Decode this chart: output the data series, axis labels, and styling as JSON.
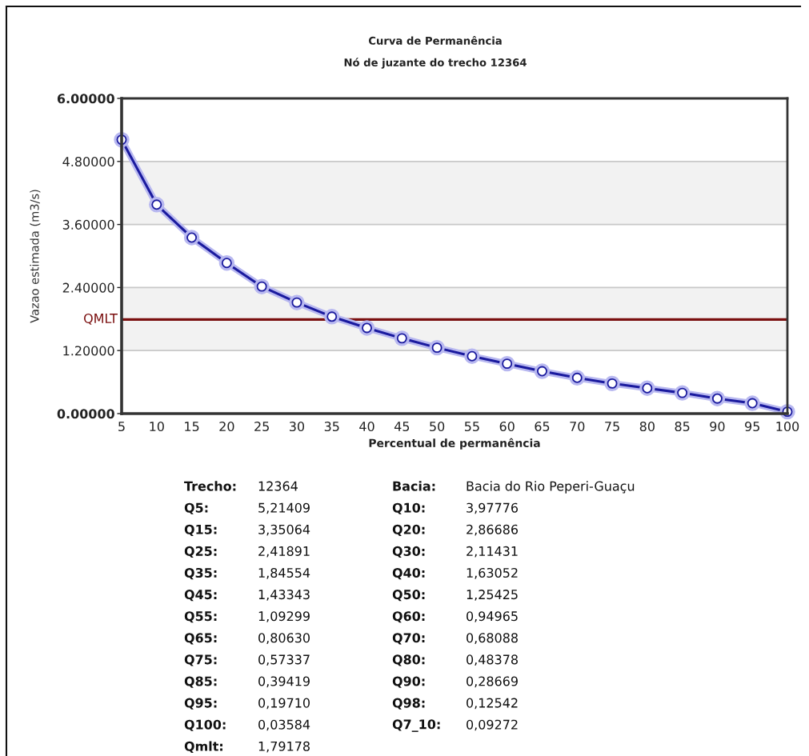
{
  "chart_data": {
    "type": "line",
    "title": "Curva de Permanência",
    "subtitle": "Nó de juzante do trecho 12364",
    "xlabel": "Percentual de permanência",
    "ylabel": "Vazao estimada (m3/s)",
    "x": [
      5,
      10,
      15,
      20,
      25,
      30,
      35,
      40,
      45,
      50,
      55,
      60,
      65,
      70,
      75,
      80,
      85,
      90,
      95,
      100
    ],
    "series": [
      {
        "color": "#1a1a9e",
        "values": [
          5.21409,
          3.97776,
          3.35064,
          2.86686,
          2.41891,
          2.11431,
          1.84554,
          1.63052,
          1.43343,
          1.25425,
          1.09299,
          0.94965,
          0.8063,
          0.68088,
          0.57337,
          0.48378,
          0.39419,
          0.28669,
          0.1971,
          0.03584
        ]
      }
    ],
    "marker": "circle",
    "line_style": "solid",
    "xlim": [
      5,
      100
    ],
    "xticks": [
      5,
      10,
      15,
      20,
      25,
      30,
      35,
      40,
      45,
      50,
      55,
      60,
      65,
      70,
      75,
      80,
      85,
      90,
      95,
      100
    ],
    "ylim": [
      0,
      6
    ],
    "yticks": [
      {
        "value": 0,
        "label": "0.00000"
      },
      {
        "value": 1.2,
        "label": "1.20000"
      },
      {
        "value": 2.4,
        "label": "2.40000"
      },
      {
        "value": 3.6,
        "label": "3.60000"
      },
      {
        "value": 4.8,
        "label": "4.80000"
      },
      {
        "value": 6,
        "label": "6.00000"
      }
    ],
    "grid": "y",
    "bands": [
      {
        "axis": "y",
        "from": 1.2,
        "to": 2.4,
        "color": "#f2f2f2"
      },
      {
        "axis": "y",
        "from": 3.6,
        "to": 4.8,
        "color": "#f2f2f2"
      }
    ],
    "ref_lines": [
      {
        "axis": "y",
        "value": 1.79178,
        "label": "QMLT",
        "color": "#7b1010"
      }
    ],
    "annotations": [
      "Trecho:",
      "12364",
      "Bacia:",
      "Bacia do Rio Peperi-Guaçu",
      "Q5:",
      "5,21409",
      "Q10:",
      "3,97776",
      "Q15:",
      "3,35064",
      "Q20:",
      "2,86686",
      "Q25:",
      "2,41891",
      "Q30:",
      "2,11431",
      "Q35:",
      "1,84554",
      "Q40:",
      "1,63052",
      "Q45:",
      "1,43343",
      "Q50:",
      "1,25425",
      "Q55:",
      "1,09299",
      "Q60:",
      "0,94965",
      "Q65:",
      "0,80630",
      "Q70:",
      "0,68088",
      "Q75:",
      "0,57337",
      "Q80:",
      "0,48378",
      "Q85:",
      "0,39419",
      "Q90:",
      "0,28669",
      "Q95:",
      "0,19710",
      "Q98:",
      "0,12542",
      "Q100:",
      "0,03584",
      "Q7_10:",
      "0,09272",
      "Qmlt:",
      "1,79178"
    ]
  }
}
